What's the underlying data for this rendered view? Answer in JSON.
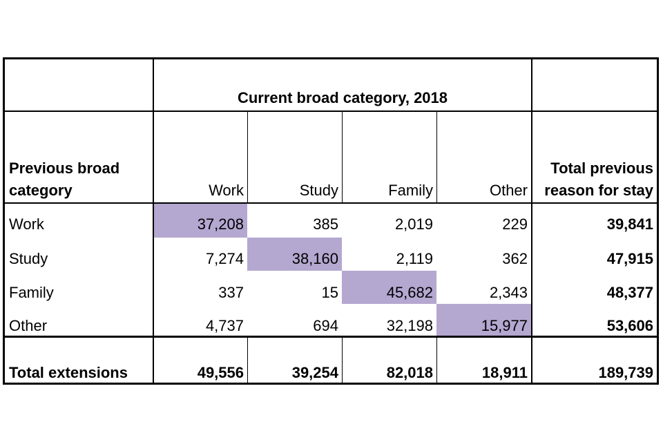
{
  "table": {
    "group_header": "Current broad category, 2018",
    "row_header_label_line1": "Previous broad",
    "row_header_label_line2": "category",
    "columns": [
      "Work",
      "Study",
      "Family",
      "Other"
    ],
    "total_header_line1": "Total previous",
    "total_header_line2": "reason for stay",
    "rows": [
      {
        "label": "Work",
        "values": [
          "37,208",
          "385",
          "2,019",
          "229"
        ],
        "total": "39,841"
      },
      {
        "label": "Study",
        "values": [
          "7,274",
          "38,160",
          "2,119",
          "362"
        ],
        "total": "47,915"
      },
      {
        "label": "Family",
        "values": [
          "337",
          "15",
          "45,682",
          "2,343"
        ],
        "total": "48,377"
      },
      {
        "label": "Other",
        "values": [
          "4,737",
          "694",
          "32,198",
          "15,977"
        ],
        "total": "53,606"
      }
    ],
    "totals_row": {
      "label": "Total extensions",
      "values": [
        "49,556",
        "39,254",
        "82,018",
        "18,911"
      ],
      "total": "189,739"
    },
    "highlight_color": "#b4a7d0"
  }
}
